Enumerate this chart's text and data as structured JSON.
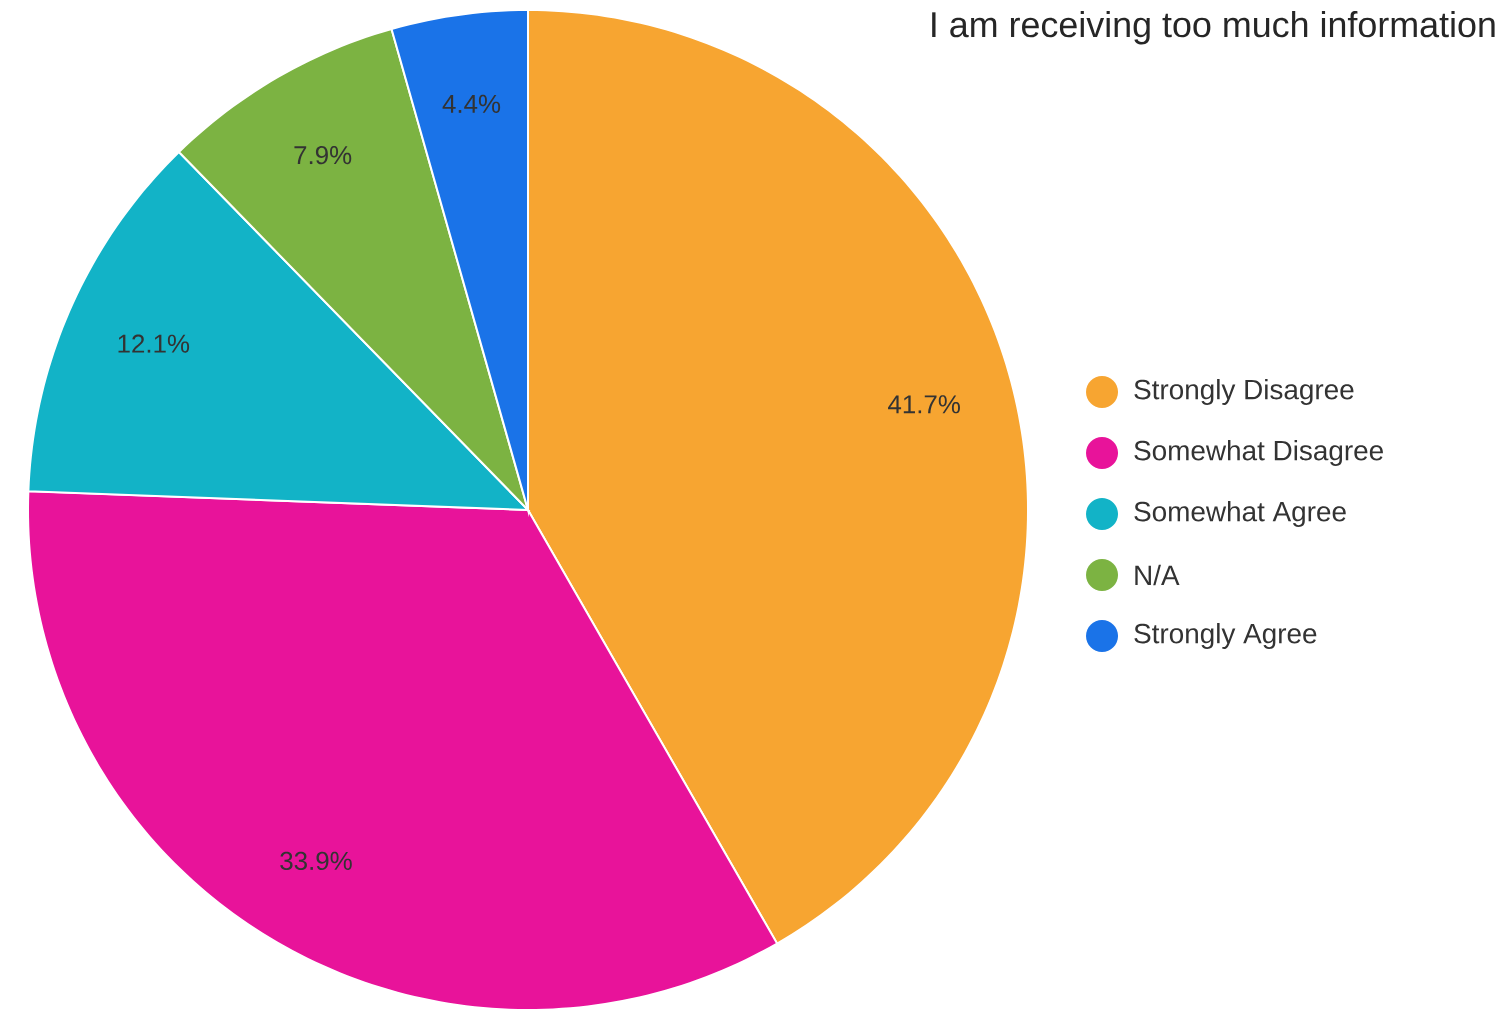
{
  "chart_data": {
    "type": "pie",
    "title": "I am receiving too much information",
    "categories": [
      "Strongly Disagree",
      "Somewhat Disagree",
      "Somewhat Agree",
      "N/A",
      "Strongly Agree"
    ],
    "values": [
      41.7,
      33.9,
      12.1,
      7.9,
      4.4
    ],
    "value_labels": [
      "41.7%",
      "33.9%",
      "12.1%",
      "7.9%",
      "4.4%"
    ],
    "colors": [
      "#f7a531",
      "#e8139a",
      "#12b3c7",
      "#7cb342",
      "#1a73e8"
    ],
    "legend": "right"
  }
}
